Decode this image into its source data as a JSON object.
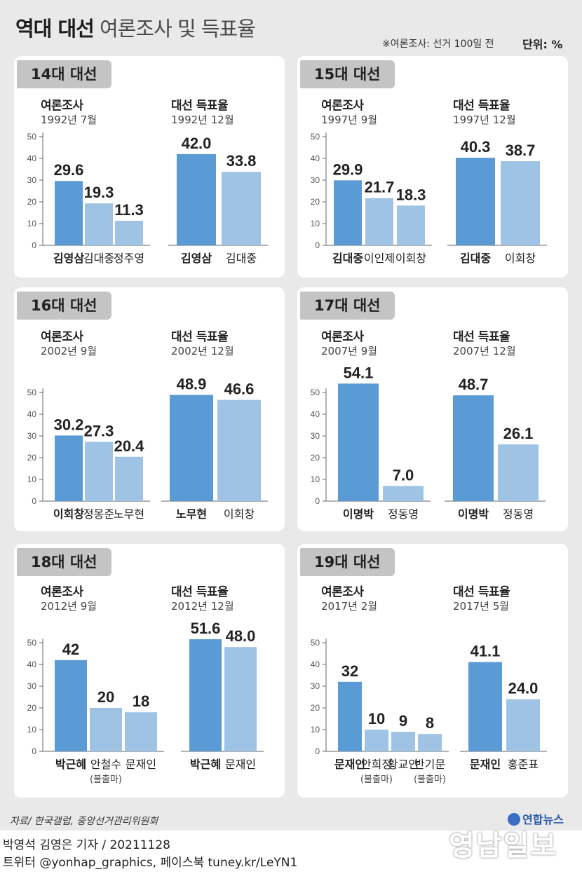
{
  "header": {
    "title_bold": "역대 대선",
    "title_light": "여론조사 및 득표율",
    "note": "※여론조사: 선거 100일 전",
    "unit": "단위: %"
  },
  "chart_data": [
    {
      "type": "bar",
      "panel": "14대 대선",
      "subcharts": [
        {
          "title": "여론조사",
          "date": "1992년 7월",
          "ylim": [
            0,
            50
          ],
          "ticks": [
            0,
            10,
            20,
            30,
            40,
            50
          ],
          "categories": [
            "김영삼",
            "김대중",
            "정주영"
          ],
          "values": [
            29.6,
            19.3,
            11.3
          ],
          "labels": [
            "29.6",
            "19.3",
            "11.3"
          ],
          "notes": [
            "",
            "",
            ""
          ]
        },
        {
          "title": "대선 득표율",
          "date": "1992년 12월",
          "ylim": [
            0,
            50
          ],
          "categories": [
            "김영삼",
            "김대중"
          ],
          "values": [
            42.0,
            33.8
          ],
          "labels": [
            "42.0",
            "33.8"
          ],
          "notes": [
            "",
            ""
          ]
        }
      ]
    },
    {
      "type": "bar",
      "panel": "15대 대선",
      "subcharts": [
        {
          "title": "여론조사",
          "date": "1997년 9월",
          "ylim": [
            0,
            50
          ],
          "ticks": [
            0,
            10,
            20,
            30,
            40,
            50
          ],
          "categories": [
            "김대중",
            "이인제",
            "이회창"
          ],
          "values": [
            29.9,
            21.7,
            18.3
          ],
          "labels": [
            "29.9",
            "21.7",
            "18.3"
          ],
          "notes": [
            "",
            "",
            ""
          ]
        },
        {
          "title": "대선 득표율",
          "date": "1997년 12월",
          "ylim": [
            0,
            50
          ],
          "categories": [
            "김대중",
            "이회창"
          ],
          "values": [
            40.3,
            38.7
          ],
          "labels": [
            "40.3",
            "38.7"
          ],
          "notes": [
            "",
            ""
          ]
        }
      ]
    },
    {
      "type": "bar",
      "panel": "16대 대선",
      "subcharts": [
        {
          "title": "여론조사",
          "date": "2002년 9월",
          "ylim": [
            0,
            50
          ],
          "ticks": [
            0,
            10,
            20,
            30,
            40,
            50
          ],
          "categories": [
            "이회창",
            "정몽준",
            "노무현"
          ],
          "values": [
            30.2,
            27.3,
            20.4
          ],
          "labels": [
            "30.2",
            "27.3",
            "20.4"
          ],
          "notes": [
            "",
            "",
            ""
          ]
        },
        {
          "title": "대선 득표율",
          "date": "2002년 12월",
          "ylim": [
            0,
            50
          ],
          "categories": [
            "노무현",
            "이회창"
          ],
          "values": [
            48.9,
            46.6
          ],
          "labels": [
            "48.9",
            "46.6"
          ],
          "notes": [
            "",
            ""
          ]
        }
      ]
    },
    {
      "type": "bar",
      "panel": "17대 대선",
      "subcharts": [
        {
          "title": "여론조사",
          "date": "2007년 9월",
          "ylim": [
            0,
            50
          ],
          "ticks": [
            0,
            10,
            20,
            30,
            40,
            50
          ],
          "categories": [
            "이명박",
            "정동영"
          ],
          "values": [
            54.1,
            7.0
          ],
          "labels": [
            "54.1",
            "7.0"
          ],
          "notes": [
            "",
            ""
          ]
        },
        {
          "title": "대선 득표율",
          "date": "2007년 12월",
          "ylim": [
            0,
            50
          ],
          "categories": [
            "이명박",
            "정동영"
          ],
          "values": [
            48.7,
            26.1
          ],
          "labels": [
            "48.7",
            "26.1"
          ],
          "notes": [
            "",
            ""
          ]
        }
      ]
    },
    {
      "type": "bar",
      "panel": "18대 대선",
      "subcharts": [
        {
          "title": "여론조사",
          "date": "2012년 9월",
          "ylim": [
            0,
            50
          ],
          "ticks": [
            0,
            10,
            20,
            30,
            40,
            50
          ],
          "categories": [
            "박근혜",
            "안철수",
            "문재인"
          ],
          "values": [
            42,
            20,
            18
          ],
          "labels": [
            "42",
            "20",
            "18"
          ],
          "notes": [
            "",
            "(불출마)",
            ""
          ]
        },
        {
          "title": "대선 득표율",
          "date": "2012년 12월",
          "ylim": [
            0,
            50
          ],
          "categories": [
            "박근혜",
            "문재인"
          ],
          "values": [
            51.6,
            48.0
          ],
          "labels": [
            "51.6",
            "48.0"
          ],
          "notes": [
            "",
            ""
          ]
        }
      ]
    },
    {
      "type": "bar",
      "panel": "19대 대선",
      "subcharts": [
        {
          "title": "여론조사",
          "date": "2017년 2월",
          "ylim": [
            0,
            50
          ],
          "ticks": [
            0,
            10,
            20,
            30,
            40,
            50
          ],
          "categories": [
            "문재인",
            "안희정",
            "황교안",
            "반기문"
          ],
          "values": [
            32,
            10,
            9,
            8
          ],
          "labels": [
            "32",
            "10",
            "9",
            "8"
          ],
          "notes": [
            "",
            "(불출마)",
            "",
            "(불출마)"
          ]
        },
        {
          "title": "대선 득표율",
          "date": "2017년 5월",
          "ylim": [
            0,
            50
          ],
          "categories": [
            "문재인",
            "홍준표"
          ],
          "values": [
            41.1,
            24.0
          ],
          "labels": [
            "41.1",
            "24.0"
          ],
          "notes": [
            "",
            ""
          ]
        }
      ]
    }
  ],
  "colors": {
    "primary_bar": "#5b9bd5",
    "secondary_bar": "#9fc3e5",
    "axis": "#666666"
  },
  "footer": {
    "source": "자료/ 한국갤럽, 중앙선거관리위원회",
    "credit": "박영석 김영은 기자 /  20211128",
    "social": "트위터 @yonhap_graphics, 페이스북 tuney.kr/LeYN1",
    "logo": "연합뉴스",
    "watermark": "영남일보"
  }
}
